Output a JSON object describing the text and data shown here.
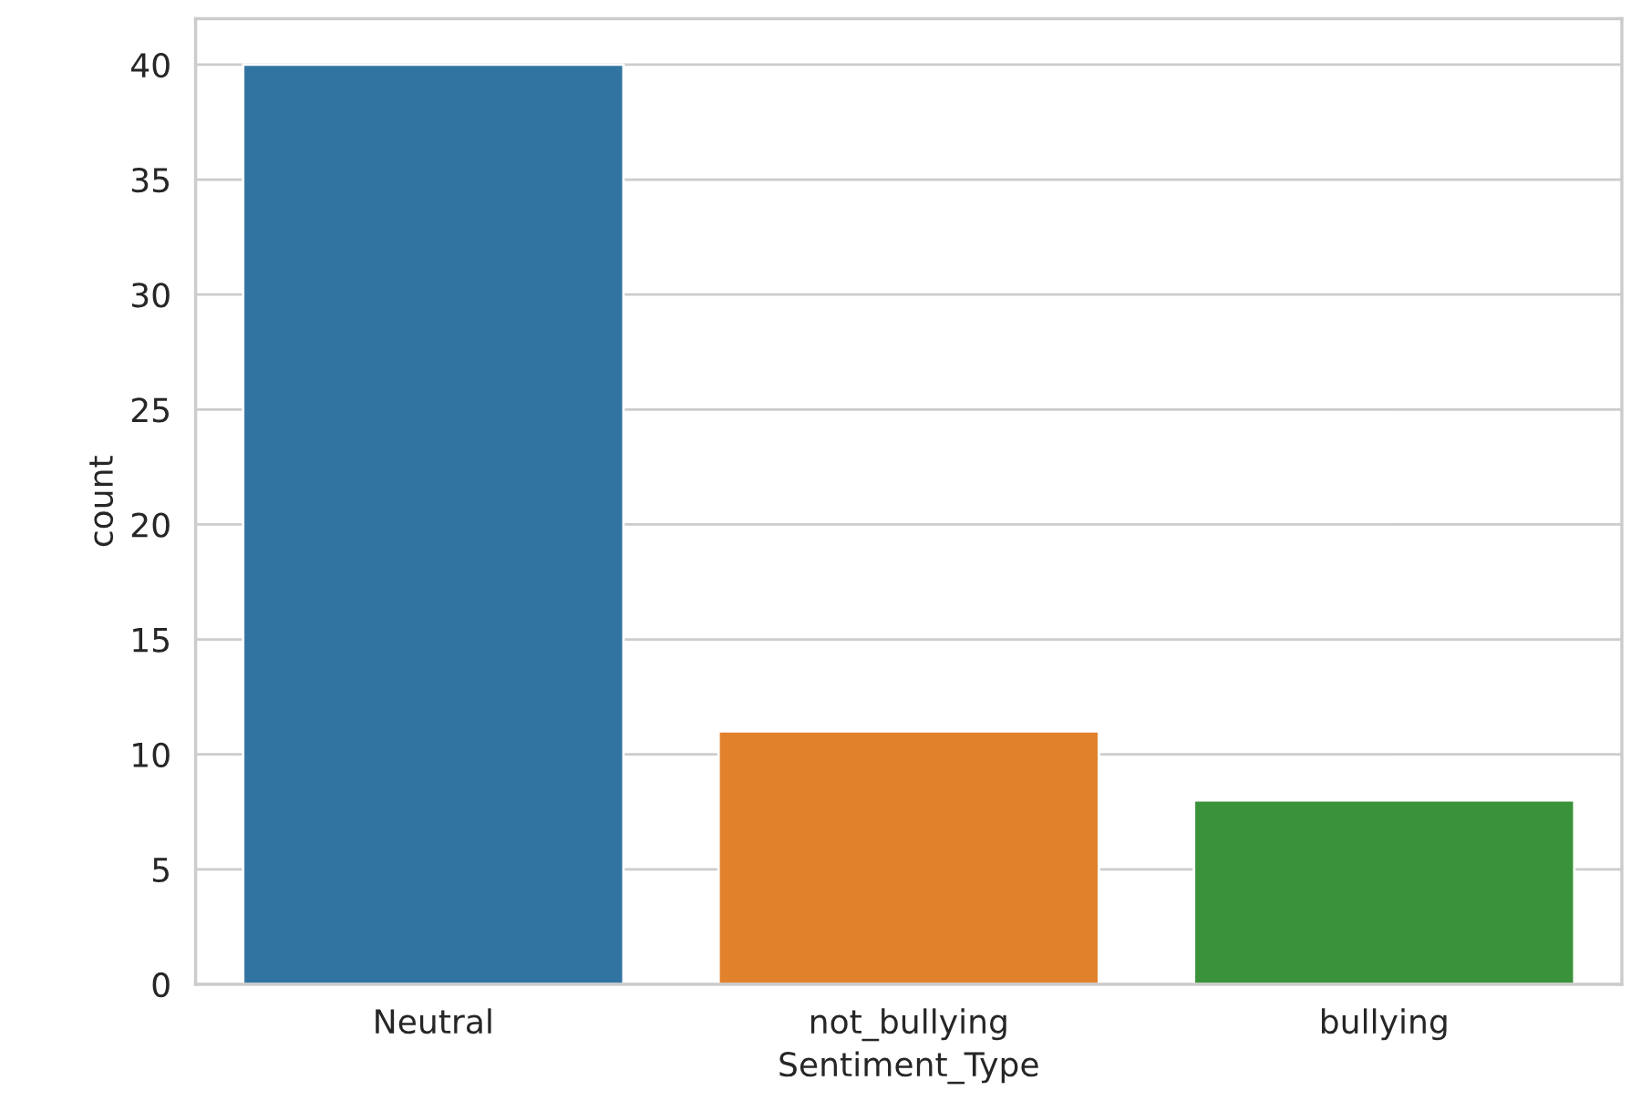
{
  "chart_data": {
    "type": "bar",
    "xlabel": "Sentiment_Type",
    "ylabel": "count",
    "categories": [
      "Neutral",
      "not_bullying",
      "bullying"
    ],
    "values": [
      40,
      11,
      8
    ],
    "colors": [
      "#3274a1",
      "#e1812c",
      "#3a923a"
    ],
    "ylim": [
      0,
      42
    ],
    "yticks": [
      0,
      5,
      10,
      15,
      20,
      25,
      30,
      35,
      40
    ],
    "grid": "y"
  }
}
